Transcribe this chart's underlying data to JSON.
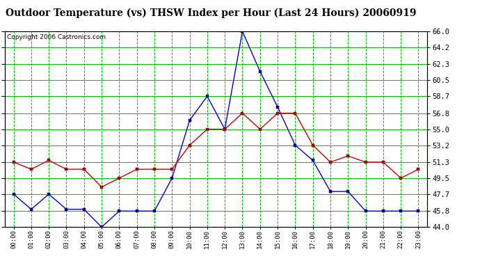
{
  "title": "Outdoor Temperature (vs) THSW Index per Hour (Last 24 Hours) 20060919",
  "copyright": "Copyright 2006 Castronics.com",
  "hours": [
    "00:00",
    "01:00",
    "02:00",
    "03:00",
    "04:00",
    "05:00",
    "06:00",
    "07:00",
    "08:00",
    "09:00",
    "10:00",
    "11:00",
    "12:00",
    "13:00",
    "14:00",
    "15:00",
    "16:00",
    "17:00",
    "18:00",
    "19:00",
    "20:00",
    "21:00",
    "22:00",
    "23:00"
  ],
  "temp_red": [
    51.3,
    50.5,
    51.5,
    50.5,
    50.5,
    48.5,
    49.5,
    50.5,
    50.5,
    50.5,
    53.2,
    55.0,
    55.0,
    56.8,
    55.0,
    56.8,
    56.8,
    53.2,
    51.3,
    52.0,
    51.3,
    51.3,
    49.5,
    50.5
  ],
  "thsw_blue": [
    47.7,
    46.0,
    47.7,
    46.0,
    46.0,
    44.0,
    45.8,
    45.8,
    45.8,
    49.5,
    56.0,
    58.7,
    55.0,
    66.0,
    61.5,
    57.5,
    53.2,
    51.5,
    48.0,
    48.0,
    45.8,
    45.8,
    45.8,
    45.8
  ],
  "ylim": [
    44.0,
    66.0
  ],
  "yticks": [
    44.0,
    45.8,
    47.7,
    49.5,
    51.3,
    53.2,
    55.0,
    56.8,
    58.7,
    60.5,
    62.3,
    64.2,
    66.0
  ],
  "red_color": "#cc0000",
  "blue_color": "#0000cc",
  "bg_color": "#ffffff",
  "grid_color_h": "#00bb00",
  "grid_color_v_dashed": "#00bb00",
  "title_fontsize": 10,
  "copyright_fontsize": 6.5
}
